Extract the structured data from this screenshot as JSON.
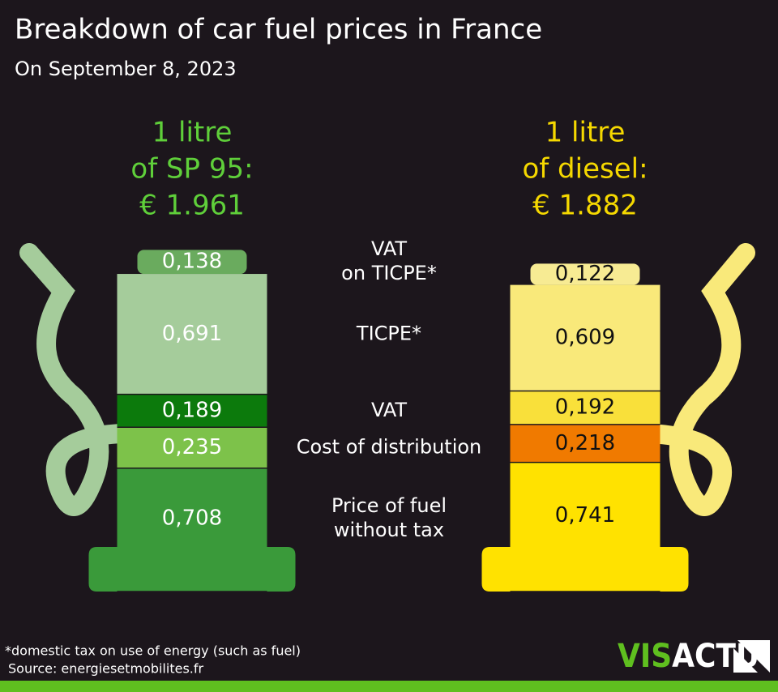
{
  "chart_data": {
    "type": "stacked-pump",
    "title": "Breakdown of car fuel prices in France",
    "subtitle": "On September 8, 2023",
    "categories": [
      [
        "VAT",
        "on TICPE*"
      ],
      [
        "TICPE*"
      ],
      [
        "VAT"
      ],
      [
        "Cost of distribution"
      ],
      [
        "Price of fuel",
        "without tax"
      ]
    ],
    "series": [
      {
        "name": [
          "1 litre",
          "of SP 95:"
        ],
        "total_label": "€ 1.961",
        "color": "#5fcf3a",
        "values": [
          0.138,
          0.691,
          0.189,
          0.235,
          0.708
        ],
        "value_labels": [
          "0,138",
          "0,691",
          "0,189",
          "0,235",
          "0,708"
        ],
        "colors": [
          "#6aab5e",
          "#a5cc9b",
          "#0c7a0c",
          "#7dc24a",
          "#3a9a3a"
        ]
      },
      {
        "name": [
          "1 litre",
          "of diesel:"
        ],
        "total_label": "€ 1.882",
        "color": "#f5d800",
        "values": [
          0.122,
          0.609,
          0.192,
          0.218,
          0.741
        ],
        "value_labels": [
          "0,122",
          "0,609",
          "0,192",
          "0,218",
          "0,741"
        ],
        "colors": [
          "#f7eb93",
          "#f9e97a",
          "#f9e03a",
          "#f07a00",
          "#ffe200"
        ]
      }
    ]
  },
  "footnote": "*domestic tax on use of energy (such as fuel)",
  "source": "Source: energiesetmobilites.fr",
  "logo": [
    "VIS",
    "ACTU"
  ]
}
